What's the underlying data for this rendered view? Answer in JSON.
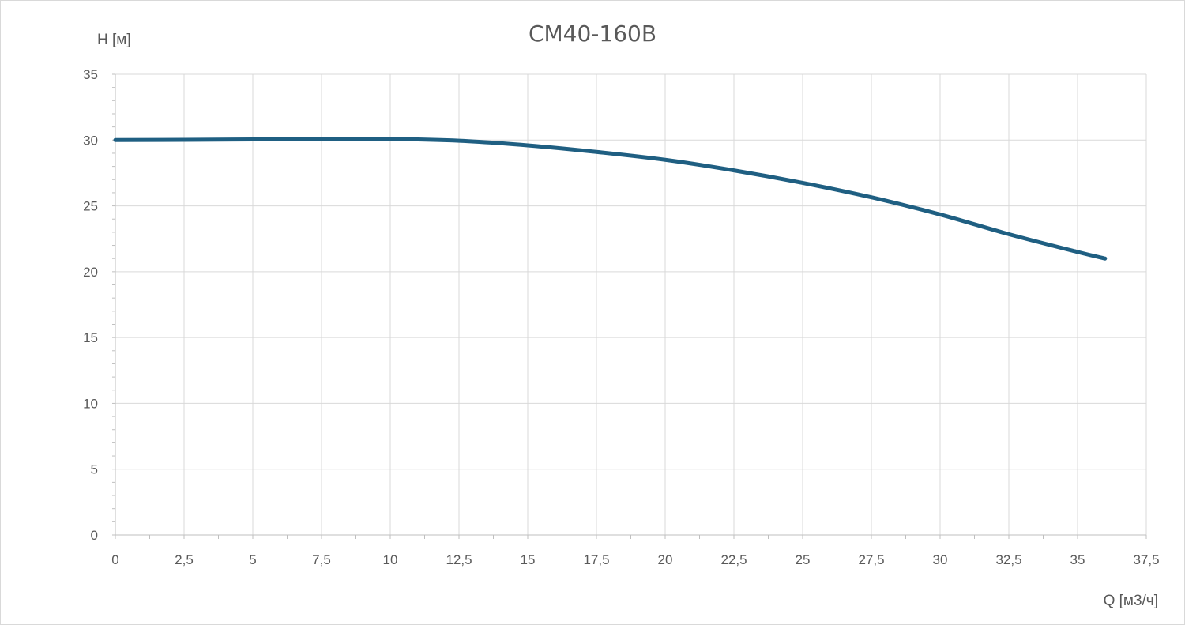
{
  "chart_data": {
    "type": "line",
    "title": "CM40-160B",
    "xlabel": "Q [м3/ч]",
    "ylabel": "H [м]",
    "xlim": [
      0,
      37.5
    ],
    "ylim": [
      0,
      35
    ],
    "grid": true,
    "x_ticks": [
      "0",
      "2,5",
      "5",
      "7,5",
      "10",
      "12,5",
      "15",
      "17,5",
      "20",
      "22,5",
      "25",
      "27,5",
      "30",
      "32,5",
      "35",
      "37,5"
    ],
    "y_ticks": [
      "0",
      "5",
      "10",
      "15",
      "20",
      "25",
      "30",
      "35"
    ],
    "series": [
      {
        "color": "#1f5f82",
        "x": [
          0,
          2.5,
          5,
          7.5,
          10,
          12.5,
          15,
          17.5,
          20,
          22.5,
          25,
          27.5,
          30,
          32.5,
          35,
          36
        ],
        "y": [
          30.0,
          30.02,
          30.05,
          30.08,
          30.08,
          29.95,
          29.6,
          29.1,
          28.5,
          27.7,
          26.75,
          25.65,
          24.35,
          22.85,
          21.5,
          21.0
        ]
      }
    ]
  },
  "colors": {
    "line": "#1f5f82",
    "grid": "#d9d9d9",
    "text": "#595959"
  }
}
